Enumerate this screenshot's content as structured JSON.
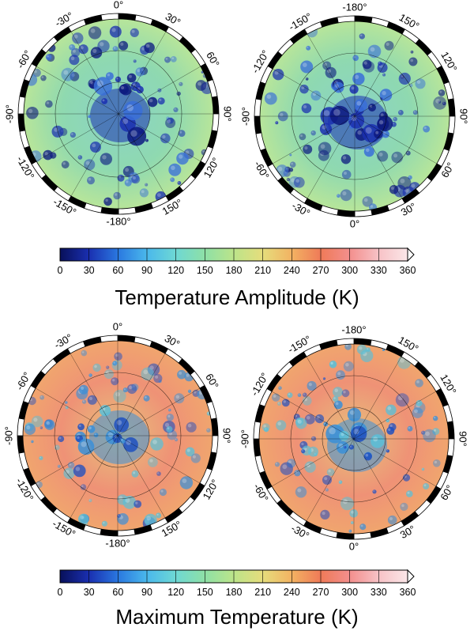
{
  "panels": [
    {
      "name": "amplitude",
      "title": "Temperature Amplitude (K)",
      "maps": [
        {
          "pole": "north",
          "labels": [
            "0°",
            "30°",
            "60°",
            "90°",
            "120°",
            "150°",
            "-180°",
            "-150°",
            "-120°",
            "-90°",
            "-60°",
            "-30°"
          ]
        },
        {
          "pole": "south",
          "labels": [
            "-180°",
            "150°",
            "120°",
            "90°",
            "60°",
            "30°",
            "0°",
            "-30°",
            "-60°",
            "-90°",
            "-120°",
            "-150°"
          ]
        }
      ],
      "colorbar": {
        "ticks": [
          "0",
          "30",
          "60",
          "90",
          "120",
          "150",
          "180",
          "210",
          "240",
          "270",
          "300",
          "330",
          "360"
        ]
      }
    },
    {
      "name": "maximum",
      "title": "Maximum Temperature (K)",
      "maps": [
        {
          "pole": "north",
          "labels": [
            "0°",
            "30°",
            "60°",
            "90°",
            "120°",
            "150°",
            "-180°",
            "-150°",
            "-120°",
            "-90°",
            "-60°",
            "-30°"
          ]
        },
        {
          "pole": "south",
          "labels": [
            "-180°",
            "150°",
            "120°",
            "90°",
            "60°",
            "30°",
            "0°",
            "-30°",
            "-60°",
            "-90°",
            "-120°",
            "-150°"
          ]
        }
      ],
      "colorbar": {
        "ticks": [
          "0",
          "30",
          "60",
          "90",
          "120",
          "150",
          "180",
          "210",
          "240",
          "270",
          "300",
          "330",
          "360"
        ]
      }
    }
  ],
  "colormap_stops": [
    "#08105a",
    "#1a2fb0",
    "#2a78e0",
    "#4ab8ec",
    "#6ed8d4",
    "#8ee0a6",
    "#bce48a",
    "#e6dd7c",
    "#f2b262",
    "#ef7a58",
    "#f38f8d",
    "#f7c2c6",
    "#fbe6e8"
  ]
}
